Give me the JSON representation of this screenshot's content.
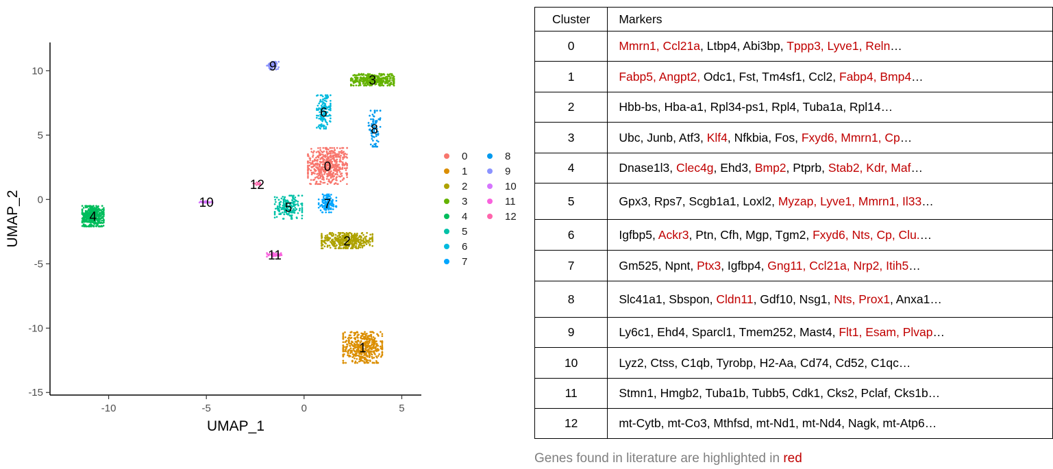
{
  "chart_data": [
    {
      "type": "scatter",
      "xlabel": "UMAP_1",
      "ylabel": "UMAP_2",
      "xlim": [
        -13,
        6
      ],
      "ylim": [
        -15.2,
        12.2
      ],
      "xticks": [
        -10,
        -5,
        0,
        5
      ],
      "yticks": [
        10,
        5,
        0,
        -5,
        -10,
        -15
      ],
      "grid": false,
      "legend_position": "right",
      "clusters": [
        {
          "name": "0",
          "color": "#F8766D",
          "center": [
            1.2,
            2.6
          ],
          "spread": [
            1.0,
            1.4
          ],
          "n": 520
        },
        {
          "name": "1",
          "color": "#DB8E00",
          "center": [
            3.0,
            -11.5
          ],
          "spread": [
            1.0,
            1.2
          ],
          "n": 480
        },
        {
          "name": "2",
          "color": "#AEA200",
          "center": [
            2.2,
            -3.2
          ],
          "spread": [
            1.3,
            0.6
          ],
          "n": 420
        },
        {
          "name": "3",
          "color": "#64B200",
          "center": [
            3.5,
            9.3
          ],
          "spread": [
            1.1,
            0.45
          ],
          "n": 360
        },
        {
          "name": "4",
          "color": "#00BD5C",
          "center": [
            -10.8,
            -1.3
          ],
          "spread": [
            0.55,
            0.8
          ],
          "n": 480
        },
        {
          "name": "5",
          "color": "#00C1A7",
          "center": [
            -0.8,
            -0.6
          ],
          "spread": [
            0.7,
            0.9
          ],
          "n": 190
        },
        {
          "name": "6",
          "color": "#00BADE",
          "center": [
            1.0,
            6.8
          ],
          "spread": [
            0.35,
            1.3
          ],
          "n": 150
        },
        {
          "name": "7",
          "color": "#00A6FF",
          "center": [
            1.2,
            -0.3
          ],
          "spread": [
            0.45,
            0.7
          ],
          "n": 130
        },
        {
          "name": "8",
          "color": "#0099EE",
          "center": [
            3.6,
            5.5
          ],
          "spread": [
            0.3,
            1.4
          ],
          "n": 80
        },
        {
          "name": "9",
          "color": "#8B93FF",
          "center": [
            -1.6,
            10.4
          ],
          "spread": [
            0.3,
            0.3
          ],
          "n": 50
        },
        {
          "name": "10",
          "color": "#D575FE",
          "center": [
            -5.0,
            -0.2
          ],
          "spread": [
            0.35,
            0.06
          ],
          "n": 35
        },
        {
          "name": "11",
          "color": "#F962DD",
          "center": [
            -1.5,
            -4.3
          ],
          "spread": [
            0.4,
            0.15
          ],
          "n": 45
        },
        {
          "name": "12",
          "color": "#FF65AC",
          "center": [
            -2.4,
            1.2
          ],
          "spread": [
            0.2,
            0.12
          ],
          "n": 10
        }
      ],
      "legend_entries": [
        "0",
        "1",
        "2",
        "3",
        "4",
        "5",
        "6",
        "7",
        "8",
        "9",
        "10",
        "11",
        "12"
      ]
    },
    {
      "type": "table",
      "columns": [
        "Cluster",
        "Markers"
      ],
      "rows": [
        {
          "cluster": "0",
          "markers": [
            {
              "t": "Mmrn1, Ccl21a",
              "lit": true
            },
            {
              "t": ", Ltbp4, Abi3bp, ",
              "lit": false
            },
            {
              "t": "Tppp3, Lyve1, Reln",
              "lit": true
            },
            {
              "t": "…",
              "lit": false
            }
          ]
        },
        {
          "cluster": "1",
          "markers": [
            {
              "t": "Fabp5, Angpt2,",
              "lit": true
            },
            {
              "t": " Odc1, Fst, Tm4sf1, Ccl2, ",
              "lit": false
            },
            {
              "t": "Fabp4, Bmp4",
              "lit": true
            },
            {
              "t": "…",
              "lit": false
            }
          ]
        },
        {
          "cluster": "2",
          "markers": [
            {
              "t": "Hbb-bs, Hba-a1, Rpl34-ps1, Rpl4, Tuba1a, Rpl14…",
              "lit": false
            }
          ]
        },
        {
          "cluster": "3",
          "markers": [
            {
              "t": "Ubc, Junb, Atf3, ",
              "lit": false
            },
            {
              "t": "Klf4",
              "lit": true
            },
            {
              "t": ", Nfkbia, Fos, ",
              "lit": false
            },
            {
              "t": "Fxyd6, Mmrn1, Cp",
              "lit": true
            },
            {
              "t": "…",
              "lit": false
            }
          ]
        },
        {
          "cluster": "4",
          "markers": [
            {
              "t": "Dnase1l3, ",
              "lit": false
            },
            {
              "t": "Clec4g",
              "lit": true
            },
            {
              "t": ", Ehd3, ",
              "lit": false
            },
            {
              "t": "Bmp2",
              "lit": true
            },
            {
              "t": ", Ptprb, ",
              "lit": false
            },
            {
              "t": "Stab2, Kdr, Maf",
              "lit": true
            },
            {
              "t": "…",
              "lit": false
            }
          ]
        },
        {
          "cluster": "5",
          "markers": [
            {
              "t": "Gpx3, Rps7, Scgb1a1, Loxl2, ",
              "lit": false
            },
            {
              "t": "Myzap, Lyve1, Mmrn1, Il33",
              "lit": true
            },
            {
              "t": "…",
              "lit": false
            }
          ]
        },
        {
          "cluster": "6",
          "markers": [
            {
              "t": "Igfbp5, ",
              "lit": false
            },
            {
              "t": "Ackr3",
              "lit": true
            },
            {
              "t": ", Ptn, Cfh, Mgp, Tgm2, ",
              "lit": false
            },
            {
              "t": "Fxyd6, Nts, Cp, Clu.",
              "lit": true
            },
            {
              "t": "…",
              "lit": false
            }
          ]
        },
        {
          "cluster": "7",
          "markers": [
            {
              "t": "Gm525, Npnt, ",
              "lit": false
            },
            {
              "t": "Ptx3",
              "lit": true
            },
            {
              "t": ", Igfbp4, ",
              "lit": false
            },
            {
              "t": "Gng11, Ccl21a, Nrp2, Itih5",
              "lit": true
            },
            {
              "t": "…",
              "lit": false
            }
          ]
        },
        {
          "cluster": "8",
          "markers": [
            {
              "t": "Slc41a1, Sbspon, ",
              "lit": false
            },
            {
              "t": "Cldn11",
              "lit": true
            },
            {
              "t": ", Gdf10, Nsg1, ",
              "lit": false
            },
            {
              "t": "Nts, Prox1",
              "lit": true
            },
            {
              "t": ", Anxa1…",
              "lit": false
            }
          ]
        },
        {
          "cluster": "9",
          "markers": [
            {
              "t": "Ly6c1, Ehd4, Sparcl1, Tmem252, Mast4, ",
              "lit": false
            },
            {
              "t": "Flt1, Esam, Plvap",
              "lit": true
            },
            {
              "t": "…",
              "lit": false
            }
          ]
        },
        {
          "cluster": "10",
          "markers": [
            {
              "t": "Lyz2, Ctss, C1qb, Tyrobp, H2-Aa, Cd74, Cd52, C1qc…",
              "lit": false
            }
          ]
        },
        {
          "cluster": "11",
          "markers": [
            {
              "t": "Stmn1, Hmgb2, Tuba1b, Tubb5, Cdk1, Cks2, Pclaf, Cks1b…",
              "lit": false
            }
          ]
        },
        {
          "cluster": "12",
          "markers": [
            {
              "t": "mt-Cytb, mt-Co3, Mthfsd, mt-Nd1, mt-Nd4, Nagk, mt-Atp6…",
              "lit": false
            }
          ]
        }
      ],
      "highlight_color": "#C00000"
    }
  ],
  "footnote": {
    "text": "Genes found in literature are highlighted in ",
    "highlight": "red"
  }
}
